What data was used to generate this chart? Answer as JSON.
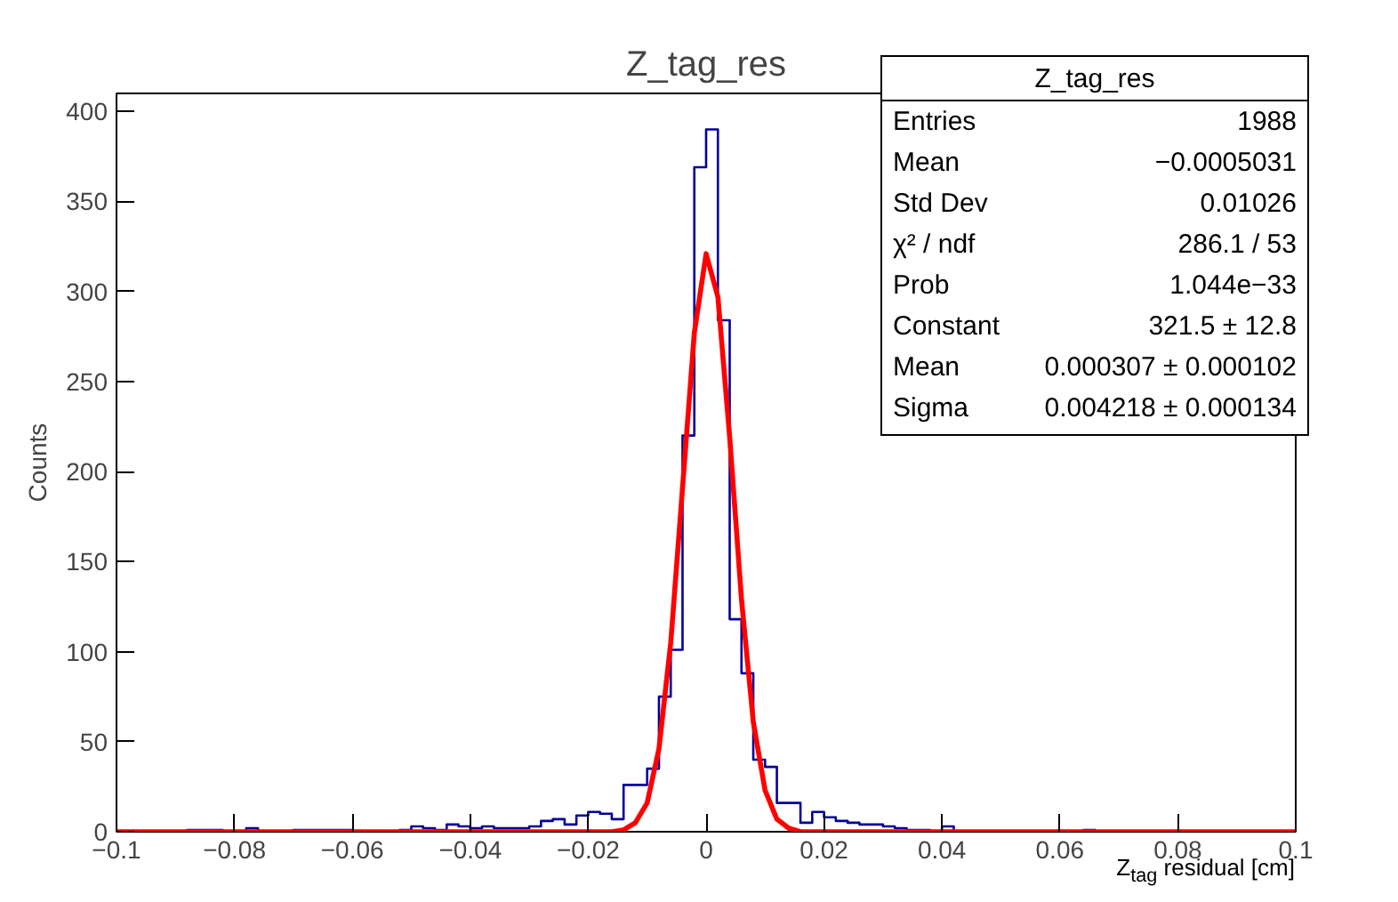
{
  "chart_data": {
    "type": "histogram",
    "title": "Z_tag_res",
    "xlabel": "Z$_{tag}$ residual [cm]",
    "ylabel": "Counts",
    "bins": [
      -0.1,
      -0.098,
      -0.096,
      -0.094,
      -0.092,
      -0.09,
      -0.088,
      -0.086,
      -0.084,
      -0.082,
      -0.08,
      -0.078,
      -0.076,
      -0.074,
      -0.072,
      -0.07,
      -0.068,
      -0.066,
      -0.064,
      -0.062,
      -0.06,
      -0.058,
      -0.056,
      -0.054,
      -0.052,
      -0.05,
      -0.048,
      -0.046,
      -0.044,
      -0.042,
      -0.04,
      -0.038,
      -0.036,
      -0.034,
      -0.032,
      -0.03,
      -0.028,
      -0.026,
      -0.024,
      -0.022,
      -0.02,
      -0.018,
      -0.016,
      -0.014,
      -0.012,
      -0.01,
      -0.008,
      -0.006,
      -0.004,
      -0.002,
      0,
      0.002,
      0.004,
      0.006,
      0.008,
      0.01,
      0.012,
      0.014,
      0.016,
      0.018,
      0.02,
      0.022,
      0.024,
      0.026,
      0.028,
      0.03,
      0.032,
      0.034,
      0.036,
      0.038,
      0.04,
      0.042,
      0.044,
      0.046,
      0.048,
      0.05,
      0.052,
      0.054,
      0.056,
      0.058,
      0.06,
      0.062,
      0.064,
      0.066,
      0.068,
      0.07,
      0.072,
      0.074,
      0.076,
      0.078,
      0.08,
      0.082,
      0.084,
      0.086,
      0.088,
      0.09,
      0.092,
      0.094,
      0.096,
      0.098,
      0.1
    ],
    "values": [
      0,
      0,
      0,
      0,
      0,
      0,
      1,
      1,
      1,
      0,
      0,
      2,
      0,
      0,
      0,
      1,
      1,
      1,
      1,
      1,
      0,
      0,
      0,
      0,
      1,
      3,
      2,
      1,
      4,
      3,
      2,
      3,
      2,
      2,
      2,
      3,
      6,
      7,
      4,
      9,
      11,
      10,
      7,
      26,
      26,
      35,
      75,
      101,
      220,
      369,
      390,
      284,
      118,
      88,
      40,
      36,
      16,
      16,
      5,
      11,
      8,
      6,
      5,
      4,
      4,
      3,
      2,
      1,
      1,
      0,
      3,
      0,
      0,
      0,
      0,
      0,
      0,
      0,
      0,
      0,
      0,
      0,
      1,
      0,
      0,
      0,
      0,
      0,
      0,
      0,
      0,
      0,
      0,
      0,
      0,
      0,
      0,
      0,
      0,
      0
    ],
    "color": "#000099",
    "series": [
      {
        "type": "line",
        "color": "#ff0000",
        "x": [
          -0.1,
          -0.02,
          -0.016,
          -0.014,
          -0.012,
          -0.01,
          -0.008,
          -0.006,
          -0.004,
          -0.002,
          0,
          0.002,
          0.004,
          0.006,
          0.008,
          0.01,
          0.012,
          0.014,
          0.016,
          0.02,
          0.1
        ],
        "values": [
          0,
          0,
          0,
          1,
          5,
          16,
          46,
          105,
          191,
          277,
          321,
          297,
          219,
          129,
          61,
          23,
          7,
          2,
          0,
          0,
          0
        ]
      }
    ],
    "xlim": [
      -0.1,
      0.1
    ],
    "ylim": [
      0,
      410
    ],
    "xticks": [
      {
        "value": -0.1,
        "label": "−0.1"
      },
      {
        "value": -0.08,
        "label": "−0.08"
      },
      {
        "value": -0.06,
        "label": "−0.06"
      },
      {
        "value": -0.04,
        "label": "−0.04"
      },
      {
        "value": -0.02,
        "label": "−0.02"
      },
      0,
      0.02,
      0.04,
      0.06,
      0.08,
      0.1
    ],
    "yticks": [
      0,
      50,
      100,
      150,
      200,
      250,
      300,
      350,
      400
    ],
    "grid": false,
    "annotations": [
      "Z_tag_res",
      "Entries",
      "1988",
      "Mean",
      "−0.0005031",
      "Std Dev",
      "0.01026",
      "χ² / ndf",
      "286.1 / 53",
      "Prob",
      "1.044e−33",
      "Constant",
      "321.5 ± 12.8",
      "Mean",
      "0.000307 ± 0.000102",
      "Sigma",
      "0.004218 ± 0.000134"
    ]
  }
}
